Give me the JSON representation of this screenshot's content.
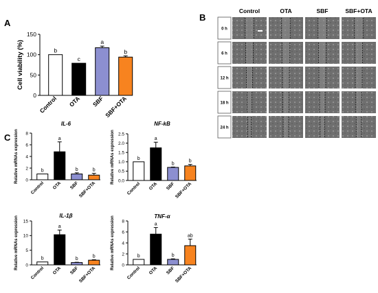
{
  "panel_labels": [
    "A",
    "B",
    "C"
  ],
  "colors": {
    "Control": "#ffffff",
    "OTA": "#000000",
    "SBF": "#8c8fd0",
    "SBF+OTA": "#f7831f"
  },
  "chart_data": [
    {
      "id": "A",
      "type": "bar",
      "title": "",
      "ylabel": "Cell viability (%)",
      "categories": [
        "Control",
        "OTA",
        "SBF",
        "SBF+OTA"
      ],
      "values": [
        100,
        79,
        117,
        94
      ],
      "errors": [
        0,
        0,
        4,
        3
      ],
      "letters": [
        "b",
        "c",
        "a",
        "b"
      ],
      "ylim": [
        0,
        150
      ],
      "yticks": [
        0,
        50,
        100,
        150
      ]
    },
    {
      "id": "IL6",
      "type": "bar",
      "title": "IL-6",
      "ylabel": "Relative mRNAs expression",
      "categories": [
        "Control",
        "OTA",
        "SBF",
        "SBF+OTA"
      ],
      "values": [
        1.0,
        4.8,
        1.0,
        0.8
      ],
      "errors": [
        0,
        1.7,
        0.2,
        0.3
      ],
      "letters": [
        "b",
        "a",
        "b",
        "b"
      ],
      "ylim": [
        0,
        8
      ],
      "yticks": [
        0,
        2,
        4,
        6,
        8
      ]
    },
    {
      "id": "NFKB",
      "type": "bar",
      "title": "NF-kB",
      "ylabel": "Relative mRNAs expression",
      "categories": [
        "Control",
        "OTA",
        "SBF",
        "SBF+OTA"
      ],
      "values": [
        1.0,
        1.75,
        0.7,
        0.78
      ],
      "errors": [
        0,
        0.3,
        0.02,
        0.08
      ],
      "letters": [
        "b",
        "a",
        "b",
        "b"
      ],
      "ylim": [
        0,
        2.5
      ],
      "yticks": [
        0.0,
        0.5,
        1.0,
        1.5,
        2.0,
        2.5
      ]
    },
    {
      "id": "IL1B",
      "type": "bar",
      "title": "IL-1β",
      "ylabel": "Relative mRNAs expression",
      "categories": [
        "Control",
        "OTA",
        "SBF",
        "SBF+OTA"
      ],
      "values": [
        1.0,
        10.3,
        0.8,
        1.6
      ],
      "errors": [
        0,
        1.6,
        0.1,
        0.15
      ],
      "letters": [
        "b",
        "a",
        "b",
        "b"
      ],
      "ylim": [
        0,
        15
      ],
      "yticks": [
        0,
        5,
        10,
        15
      ]
    },
    {
      "id": "TNFA",
      "type": "bar",
      "title": "TNF-α",
      "ylabel": "Relative mRNAs expression",
      "categories": [
        "Control",
        "OTA",
        "SBF",
        "SBF+OTA"
      ],
      "values": [
        1.0,
        5.6,
        1.0,
        3.5
      ],
      "errors": [
        0,
        1.2,
        0.1,
        1.2
      ],
      "letters": [
        "b",
        "a",
        "b",
        "ab"
      ],
      "ylim": [
        0,
        8
      ],
      "yticks": [
        0,
        2,
        4,
        6,
        8
      ]
    }
  ],
  "wound_healing": {
    "columns": [
      "Control",
      "OTA",
      "SBF",
      "SBF+OTA"
    ],
    "rows": [
      "0 h",
      "6 h",
      "12 h",
      "18 h",
      "24 h"
    ]
  }
}
